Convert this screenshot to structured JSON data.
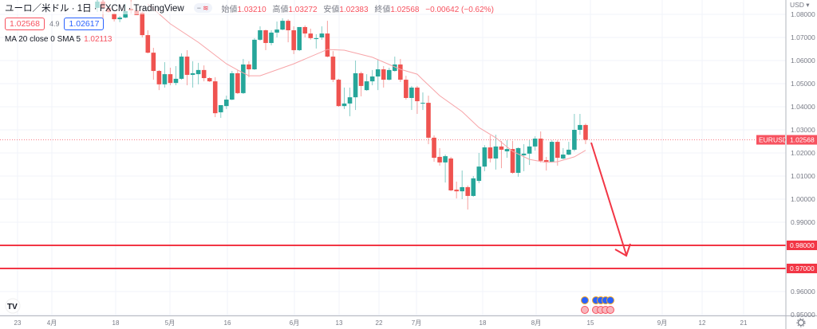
{
  "legend": {
    "symbol_title": "ユーロ／米ドル · 1日 · FXCM · TradingView",
    "open_label": "始値",
    "open": "1.03210",
    "high_label": "高値",
    "high": "1.03272",
    "low_label": "安値",
    "low": "1.02383",
    "close_label": "終値",
    "close": "1.02568",
    "change": "−0.00642 (−0.62%)",
    "bid": "1.02568",
    "spread": "4.9",
    "ask": "1.02617",
    "ma_label": "MA 20 close 0 SMA 5",
    "ma_value": "1.02113"
  },
  "price_axis": {
    "currency": "USD ▾",
    "ticks": [
      "1.08000",
      "1.07000",
      "1.06000",
      "1.05000",
      "1.04000",
      "1.03000",
      "1.02000",
      "1.01000",
      "1.00000",
      "0.99000",
      "0.96000",
      "0.95000"
    ],
    "symbol_tag": "EURUSD",
    "last_price": "1.02568",
    "hline_labels": [
      "0.98000",
      "0.97000"
    ]
  },
  "time_axis": {
    "ticks": [
      "23",
      "4月",
      "18",
      "5月",
      "16",
      "6月",
      "13",
      "22",
      "7月",
      "18",
      "8月",
      "15",
      "9月",
      "12",
      "21"
    ]
  },
  "colors": {
    "up": "#26a69a",
    "down": "#ef5350",
    "ma": "#f7a4a8",
    "hline": "#f23645",
    "arrow": "#f23645",
    "grid": "#f0f3fa"
  },
  "icons": {
    "logo": "tradingview-logo",
    "settings": "gear-icon",
    "events": "economic-event-flags"
  },
  "chart_data": {
    "type": "candlestick",
    "symbol": "EURUSD",
    "interval": "1日",
    "ylim": [
      0.95,
      1.08
    ],
    "grid": true,
    "candles": [
      [
        1.0828,
        1.0862,
        1.081,
        1.0855
      ],
      [
        1.0855,
        1.0862,
        1.0759,
        1.0828
      ],
      [
        1.0828,
        1.0834,
        1.0807,
        1.081
      ],
      [
        1.0803,
        1.081,
        1.0769,
        1.0779
      ],
      [
        1.0779,
        1.0793,
        1.0766,
        1.0786
      ],
      [
        1.0786,
        1.0845,
        1.0783,
        1.0814
      ],
      [
        1.0824,
        1.0862,
        1.0803,
        1.0817
      ],
      [
        1.0817,
        1.0828,
        1.0797,
        1.0797
      ],
      [
        1.0807,
        1.0814,
        1.07,
        1.071
      ],
      [
        1.071,
        1.0731,
        1.0631,
        1.0634
      ],
      [
        1.0634,
        1.0655,
        1.0517,
        1.0555
      ],
      [
        1.0555,
        1.0559,
        1.0472,
        1.0497
      ],
      [
        1.0497,
        1.0593,
        1.0483,
        1.0541
      ],
      [
        1.0541,
        1.0569,
        1.0493,
        1.0503
      ],
      [
        1.0503,
        1.0576,
        1.0493,
        1.0521
      ],
      [
        1.0521,
        1.0631,
        1.0517,
        1.0617
      ],
      [
        1.0617,
        1.0645,
        1.0493,
        1.0538
      ],
      [
        1.0538,
        1.0597,
        1.0483,
        1.0545
      ],
      [
        1.0541,
        1.059,
        1.0497,
        1.0559
      ],
      [
        1.0559,
        1.0579,
        1.051,
        1.0524
      ],
      [
        1.0524,
        1.0528,
        1.0507,
        1.051
      ],
      [
        1.051,
        1.0528,
        1.0355,
        1.0372
      ],
      [
        1.0376,
        1.0407,
        1.0352,
        1.0407
      ],
      [
        1.0403,
        1.0448,
        1.039,
        1.0431
      ],
      [
        1.0431,
        1.0555,
        1.0428,
        1.0545
      ],
      [
        1.0545,
        1.0559,
        1.0455,
        1.0459
      ],
      [
        1.0459,
        1.0607,
        1.0455,
        1.0583
      ],
      [
        1.0583,
        1.0597,
        1.0528,
        1.0562
      ],
      [
        1.0562,
        1.0697,
        1.0559,
        1.069
      ],
      [
        1.069,
        1.0748,
        1.0686,
        1.0731
      ],
      [
        1.0731,
        1.0734,
        1.0645,
        1.0676
      ],
      [
        1.0676,
        1.0731,
        1.0666,
        1.0721
      ],
      [
        1.0721,
        1.0769,
        1.07,
        1.0734
      ],
      [
        1.0734,
        1.0783,
        1.0731,
        1.0772
      ],
      [
        1.0772,
        1.0779,
        1.0679,
        1.0731
      ],
      [
        1.0731,
        1.0748,
        1.0628,
        1.0645
      ],
      [
        1.0645,
        1.0745,
        1.0641,
        1.0745
      ],
      [
        1.0745,
        1.0752,
        1.07,
        1.0717
      ],
      [
        1.0717,
        1.0738,
        1.069,
        1.0697
      ],
      [
        1.0693,
        1.0714,
        1.0652,
        1.0697
      ],
      [
        1.07,
        1.0748,
        1.069,
        1.0717
      ],
      [
        1.0717,
        1.0772,
        1.0614,
        1.0617
      ],
      [
        1.0617,
        1.0641,
        1.0507,
        1.0517
      ],
      [
        1.0517,
        1.0521,
        1.04,
        1.0403
      ],
      [
        1.0403,
        1.0483,
        1.039,
        1.0414
      ],
      [
        1.0414,
        1.0483,
        1.0359,
        1.0441
      ],
      [
        1.0441,
        1.06,
        1.0386,
        1.0545
      ],
      [
        1.0545,
        1.0552,
        1.0445,
        1.049
      ],
      [
        1.0472,
        1.0541,
        1.0469,
        1.051
      ],
      [
        1.051,
        1.0559,
        1.0493,
        1.0531
      ],
      [
        1.0531,
        1.0603,
        1.0472,
        1.0562
      ],
      [
        1.0562,
        1.0576,
        1.0483,
        1.0517
      ],
      [
        1.0517,
        1.0569,
        1.0514,
        1.0559
      ],
      [
        1.0555,
        1.0617,
        1.0552,
        1.0583
      ],
      [
        1.0583,
        1.0607,
        1.0507,
        1.0517
      ],
      [
        1.0517,
        1.0534,
        1.0431,
        1.0438
      ],
      [
        1.0438,
        1.049,
        1.0386,
        1.0483
      ],
      [
        1.0483,
        1.049,
        1.0369,
        1.0424
      ],
      [
        1.0416,
        1.0462,
        1.0386,
        1.0417
      ],
      [
        1.0417,
        1.0448,
        1.0238,
        1.0266
      ],
      [
        1.0266,
        1.0276,
        1.0162,
        1.0179
      ],
      [
        1.0183,
        1.0221,
        1.0145,
        1.0159
      ],
      [
        1.0159,
        1.0193,
        1.0072,
        1.0186
      ],
      [
        1.0176,
        1.0183,
        1.0034,
        1.0038
      ],
      [
        1.0041,
        1.0076,
        1.0003,
        1.0034
      ],
      [
        1.0034,
        1.0124,
        1.0,
        1.0052
      ],
      [
        1.0052,
        1.0059,
        0.9955,
        1.0014
      ],
      [
        1.0014,
        1.01,
        1.001,
        1.009
      ],
      [
        1.0079,
        1.02,
        1.0069,
        1.0141
      ],
      [
        1.0141,
        1.0234,
        1.0121,
        1.0224
      ],
      [
        1.0224,
        1.0276,
        1.0159,
        1.0176
      ],
      [
        1.0176,
        1.0279,
        1.0128,
        1.0228
      ],
      [
        1.0228,
        1.0252,
        1.0134,
        1.0214
      ],
      [
        1.0207,
        1.0255,
        1.0179,
        1.0217
      ],
      [
        1.0217,
        1.0252,
        1.011,
        1.0114
      ],
      [
        1.0114,
        1.0224,
        1.0097,
        1.0221
      ],
      [
        1.019,
        1.0238,
        1.0121,
        1.0197
      ],
      [
        1.0197,
        1.0255,
        1.0148,
        1.0228
      ],
      [
        1.0228,
        1.0272,
        1.021,
        1.0262
      ],
      [
        1.0262,
        1.0293,
        1.0159,
        1.0166
      ],
      [
        1.0169,
        1.0183,
        1.0124,
        1.0162
      ],
      [
        1.0162,
        1.0255,
        1.0159,
        1.0248
      ],
      [
        1.0248,
        1.0255,
        1.0145,
        1.0179
      ],
      [
        1.0176,
        1.0221,
        1.0172,
        1.0193
      ],
      [
        1.0193,
        1.0248,
        1.019,
        1.0214
      ],
      [
        1.0214,
        1.0369,
        1.0207,
        1.03
      ],
      [
        1.03,
        1.0369,
        1.0279,
        1.0321
      ],
      [
        1.0321,
        1.03272,
        1.02383,
        1.02568
      ]
    ],
    "ma_sma20": [
      [
        9,
        1.0845
      ],
      [
        13,
        1.0759
      ],
      [
        18,
        1.0679
      ],
      [
        23,
        1.0586
      ],
      [
        25,
        1.0559
      ],
      [
        27,
        1.0534
      ],
      [
        29,
        1.0534
      ],
      [
        35,
        1.0586
      ],
      [
        41,
        1.0648
      ],
      [
        44,
        1.0645
      ],
      [
        49,
        1.0614
      ],
      [
        54,
        1.0562
      ],
      [
        57,
        1.0541
      ],
      [
        58,
        1.0517
      ],
      [
        61,
        1.0448
      ],
      [
        65,
        1.0379
      ],
      [
        68,
        1.031
      ],
      [
        71,
        1.0266
      ],
      [
        74,
        1.0207
      ],
      [
        77,
        1.0172
      ],
      [
        80,
        1.0159
      ],
      [
        82,
        1.0162
      ],
      [
        85,
        1.0183
      ],
      [
        87,
        1.02113
      ]
    ],
    "horizontal_lines": [
      0.98,
      0.97
    ],
    "last_price": 1.02568
  }
}
